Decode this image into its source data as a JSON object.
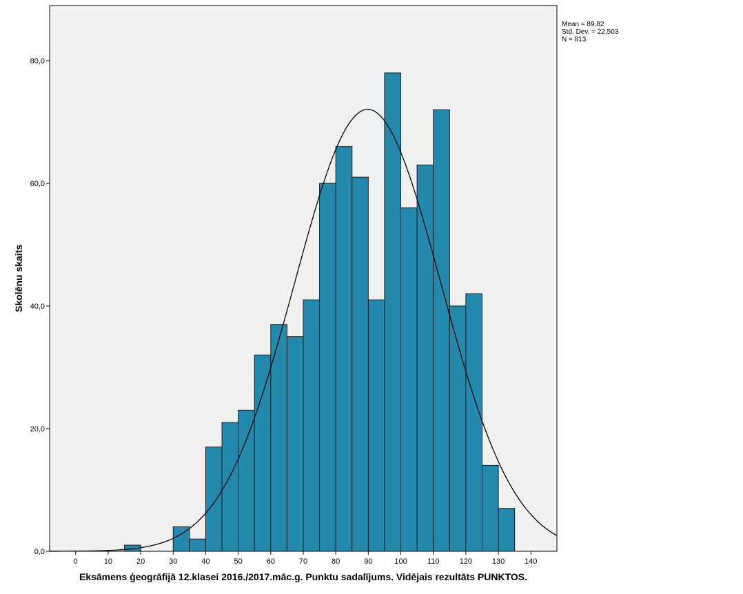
{
  "chart_data": {
    "type": "bar",
    "subtype": "histogram",
    "xlabel": "Eksāmens ģeogrāfijā 12.klasei 2016./2017.māc.g. Punktu sadalījums. Vidējais rezultāts PUNKTOS.",
    "ylabel": "Skolēnu skaits",
    "xlim": [
      -8,
      148
    ],
    "ylim": [
      0,
      89
    ],
    "x_ticks": [
      0,
      10,
      20,
      30,
      40,
      50,
      60,
      70,
      80,
      90,
      100,
      110,
      120,
      130,
      140
    ],
    "x_tick_labels": [
      "0",
      "10",
      "20",
      "30",
      "40",
      "50",
      "60",
      "70",
      "80",
      "90",
      "100",
      "110",
      "120",
      "130",
      "140"
    ],
    "y_ticks": [
      0,
      20,
      40,
      60,
      80
    ],
    "y_tick_labels": [
      "0,0",
      "20,0",
      "40,0",
      "60,0",
      "80,0"
    ],
    "bin_width": 5,
    "bins": [
      {
        "start": 15,
        "end": 20,
        "count": 1
      },
      {
        "start": 30,
        "end": 35,
        "count": 4
      },
      {
        "start": 35,
        "end": 40,
        "count": 2
      },
      {
        "start": 40,
        "end": 45,
        "count": 17
      },
      {
        "start": 45,
        "end": 50,
        "count": 21
      },
      {
        "start": 50,
        "end": 55,
        "count": 23
      },
      {
        "start": 55,
        "end": 60,
        "count": 32
      },
      {
        "start": 60,
        "end": 65,
        "count": 37
      },
      {
        "start": 65,
        "end": 70,
        "count": 35
      },
      {
        "start": 70,
        "end": 75,
        "count": 41
      },
      {
        "start": 75,
        "end": 80,
        "count": 60
      },
      {
        "start": 80,
        "end": 85,
        "count": 66
      },
      {
        "start": 85,
        "end": 90,
        "count": 61
      },
      {
        "start": 90,
        "end": 95,
        "count": 41
      },
      {
        "start": 95,
        "end": 100,
        "count": 78
      },
      {
        "start": 100,
        "end": 105,
        "count": 56
      },
      {
        "start": 105,
        "end": 110,
        "count": 63
      },
      {
        "start": 110,
        "end": 115,
        "count": 72
      },
      {
        "start": 115,
        "end": 120,
        "count": 40
      },
      {
        "start": 120,
        "end": 125,
        "count": 42
      },
      {
        "start": 125,
        "end": 130,
        "count": 14
      },
      {
        "start": 130,
        "end": 135,
        "count": 7
      }
    ],
    "normal_curve": {
      "mean": 89.82,
      "std_dev": 22.503,
      "n": 813
    },
    "stats_text": [
      "Mean = 89,82",
      "Std. Dev. = 22,503",
      "N = 813"
    ],
    "grid": false,
    "colors": {
      "plot_background": "#f0f0f0",
      "bar_fill": "#248aad",
      "bar_stroke": "#1a1a1a",
      "curve": "#000000"
    }
  }
}
